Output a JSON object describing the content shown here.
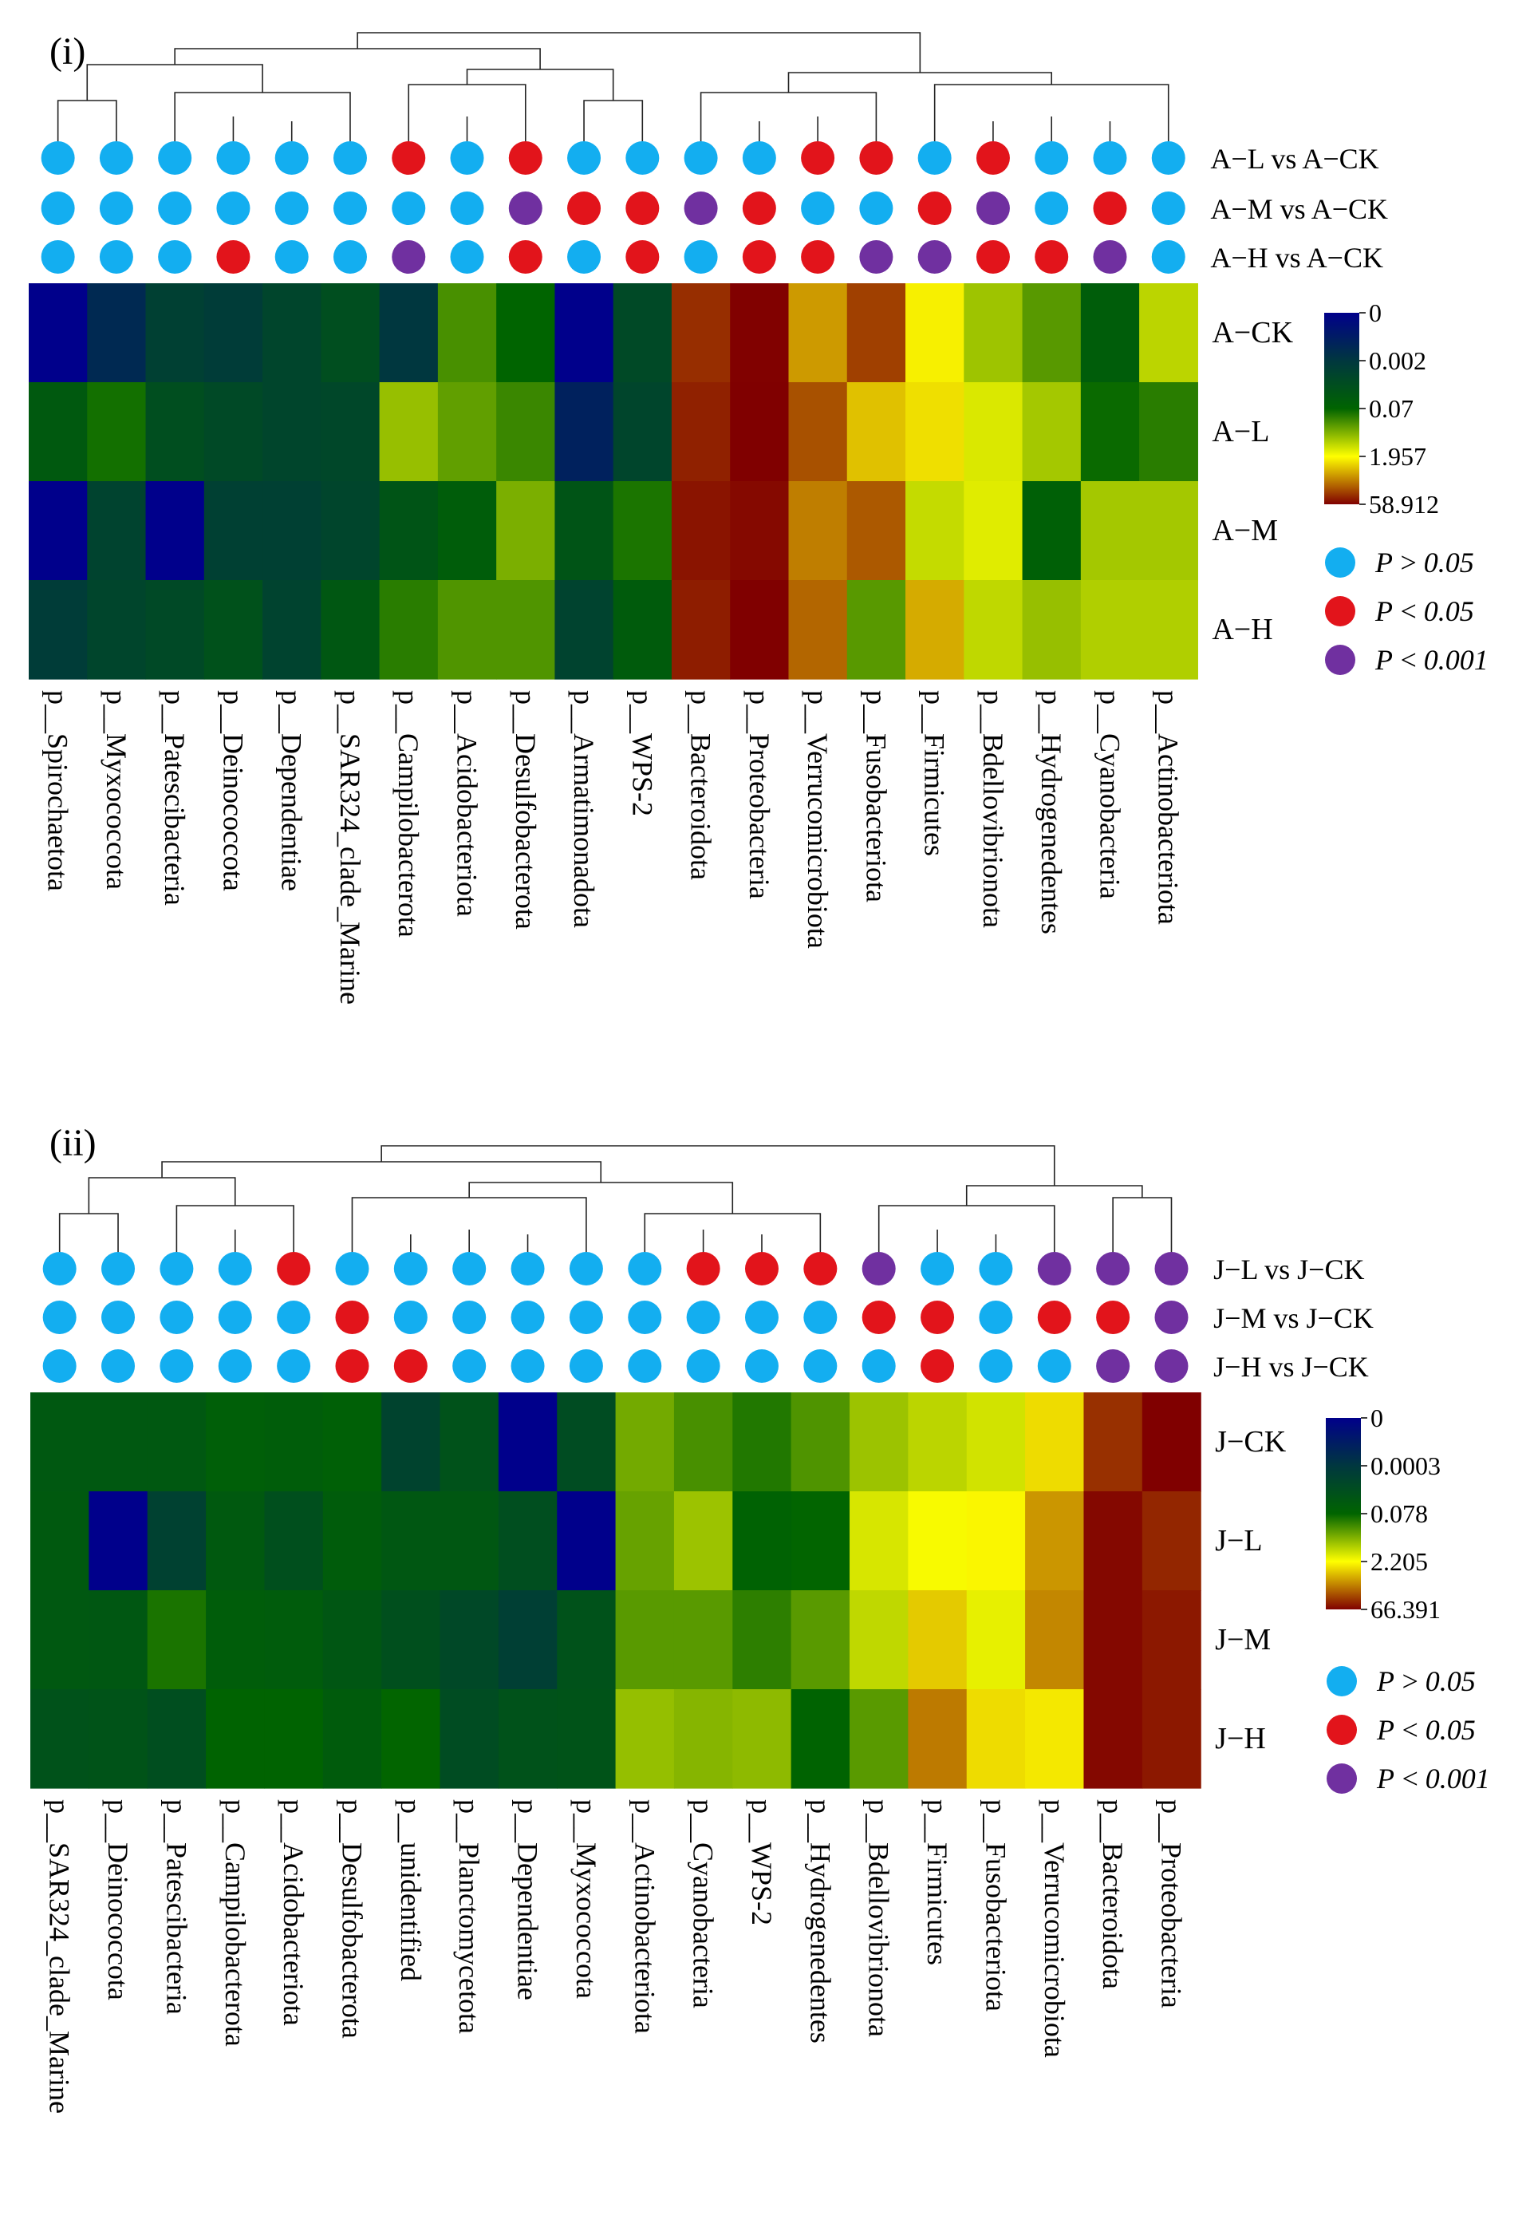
{
  "chart_data": [
    {
      "type": "heatmap",
      "panel_label": "(i)",
      "title": "",
      "rows": [
        "A−CK",
        "A−L",
        "A−M",
        "A−H"
      ],
      "columns": [
        "p__Spirochaetota",
        "p__Myxococcota",
        "p__Patescibacteria",
        "p__Deinococcota",
        "p__Dependentiae",
        "p__SAR324_clade_Marine",
        "p__Campilobacterota",
        "p__Acidobacteriota",
        "p__Desulfobacterota",
        "p__Armatimonadota",
        "p__WPS-2",
        "p__Bacteroidota",
        "p__Proteobacteria",
        "p__Verrucomicrobiota",
        "p__Fusobacteriota",
        "p__Firmicutes",
        "p__Bdellovibrionota",
        "p__Hydrogenedentes",
        "p__Cyanobacteria",
        "p__Actinobacteriota"
      ],
      "values": [
        [
          0.0,
          0.0015,
          0.004,
          0.003,
          0.006,
          0.012,
          0.002,
          0.18,
          0.07,
          0.0,
          0.008,
          32,
          58,
          7.5,
          25,
          2.4,
          0.55,
          0.22,
          0.04,
          0.8
        ],
        [
          0.03,
          0.09,
          0.012,
          0.008,
          0.006,
          0.007,
          0.5,
          0.25,
          0.15,
          0.0012,
          0.006,
          38,
          58.9,
          20,
          4.5,
          3.0,
          1.2,
          0.6,
          0.08,
          0.12
        ],
        [
          0.0,
          0.005,
          0.0,
          0.004,
          0.004,
          0.006,
          0.02,
          0.04,
          0.35,
          0.02,
          0.1,
          45,
          52,
          11,
          18,
          0.9,
          1.3,
          0.05,
          0.6,
          0.6
        ],
        [
          0.003,
          0.006,
          0.008,
          0.015,
          0.005,
          0.025,
          0.12,
          0.2,
          0.2,
          0.005,
          0.035,
          40,
          58.9,
          15,
          0.22,
          6,
          0.85,
          0.5,
          0.7,
          0.7
        ]
      ],
      "color_scale": {
        "ticks": [
          "0",
          "0.002",
          "0.07",
          "1.957",
          "58.912"
        ],
        "tick_values": [
          0,
          0.002,
          0.07,
          1.957,
          58.912
        ],
        "colors": [
          "#00008b",
          "#006400",
          "#ffff00",
          "#800000"
        ]
      },
      "comparisons": [
        {
          "label": "A−L   vs   A−CK",
          "significance": [
            "ns",
            "ns",
            "ns",
            "ns",
            "ns",
            "ns",
            "p05",
            "ns",
            "p05",
            "ns",
            "ns",
            "ns",
            "ns",
            "p05",
            "p05",
            "ns",
            "p05",
            "ns",
            "ns",
            "ns"
          ]
        },
        {
          "label": "A−M   vs   A−CK",
          "significance": [
            "ns",
            "ns",
            "ns",
            "ns",
            "ns",
            "ns",
            "ns",
            "ns",
            "p001",
            "p05",
            "p05",
            "p001",
            "p05",
            "ns",
            "ns",
            "p05",
            "p001",
            "ns",
            "p05",
            "ns"
          ]
        },
        {
          "label": "A−H   vs   A−CK",
          "significance": [
            "ns",
            "ns",
            "ns",
            "p05",
            "ns",
            "ns",
            "p001",
            "ns",
            "p05",
            "ns",
            "p05",
            "ns",
            "p05",
            "p05",
            "p001",
            "p001",
            "p05",
            "p05",
            "p001",
            "ns"
          ]
        }
      ],
      "legend": [
        {
          "key": "ns",
          "label": "P > 0.05",
          "color": "#13aef0"
        },
        {
          "key": "p05",
          "label": "P < 0.05",
          "color": "#e2141b"
        },
        {
          "key": "p001",
          "label": "P < 0.001",
          "color": "#7030a0"
        }
      ]
    },
    {
      "type": "heatmap",
      "panel_label": "(ii)",
      "title": "",
      "rows": [
        "J−CK",
        "J−L",
        "J−M",
        "J−H"
      ],
      "columns": [
        "p__SAR324_clade_Marine",
        "p__Deinococcota",
        "p__Patescibacteria",
        "p__Campilobacterota",
        "p__Acidobacteriota",
        "p__Desulfobacterota",
        "p__unidentified",
        "p__Planctomycetota",
        "p__Dependentiae",
        "p__Myxococcota",
        "p__Actinobacteriota",
        "p__Cyanobacteria",
        "p__WPS-2",
        "p__Hydrogenedentes",
        "p__Bdellovibrionota",
        "p__Firmicutes",
        "p__Fusobacteriota",
        "p__Verrucomicrobiota",
        "p__Bacteroidota",
        "p__Proteobacteria"
      ],
      "values": [
        [
          0.018,
          0.018,
          0.018,
          0.04,
          0.032,
          0.045,
          0.0013,
          0.008,
          0.0,
          0.004,
          0.35,
          0.2,
          0.12,
          0.22,
          0.6,
          0.9,
          1.2,
          3.5,
          35,
          66
        ],
        [
          0.02,
          0.0,
          0.001,
          0.02,
          0.006,
          0.03,
          0.016,
          0.016,
          0.005,
          0.0,
          0.3,
          0.6,
          0.06,
          0.08,
          1.3,
          2.0,
          2.5,
          9,
          60,
          40
        ],
        [
          0.018,
          0.016,
          0.11,
          0.033,
          0.028,
          0.014,
          0.006,
          0.0025,
          0.0008,
          0.008,
          0.25,
          0.25,
          0.14,
          0.25,
          0.95,
          4.5,
          1.6,
          11,
          60,
          48
        ],
        [
          0.008,
          0.009,
          0.005,
          0.07,
          0.07,
          0.027,
          0.08,
          0.004,
          0.008,
          0.009,
          0.55,
          0.45,
          0.5,
          0.07,
          0.25,
          13,
          3.5,
          3.0,
          60,
          48
        ]
      ],
      "color_scale": {
        "ticks": [
          "0",
          "0.0003",
          "0.078",
          "2.205",
          "66.391"
        ],
        "tick_values": [
          0,
          0.0003,
          0.078,
          2.205,
          66.391
        ],
        "colors": [
          "#00008b",
          "#006400",
          "#ffff00",
          "#800000"
        ]
      },
      "comparisons": [
        {
          "label": "J−L   vs   J−CK",
          "significance": [
            "ns",
            "ns",
            "ns",
            "ns",
            "p05",
            "ns",
            "ns",
            "ns",
            "ns",
            "ns",
            "ns",
            "p05",
            "p05",
            "p05",
            "p001",
            "ns",
            "ns",
            "p001",
            "p001",
            "p001"
          ]
        },
        {
          "label": "J−M   vs   J−CK",
          "significance": [
            "ns",
            "ns",
            "ns",
            "ns",
            "ns",
            "p05",
            "ns",
            "ns",
            "ns",
            "ns",
            "ns",
            "ns",
            "ns",
            "ns",
            "p05",
            "p05",
            "ns",
            "p05",
            "p05",
            "p001"
          ]
        },
        {
          "label": "J−H   vs   J−CK",
          "significance": [
            "ns",
            "ns",
            "ns",
            "ns",
            "ns",
            "p05",
            "p05",
            "ns",
            "ns",
            "ns",
            "ns",
            "ns",
            "ns",
            "ns",
            "ns",
            "p05",
            "ns",
            "ns",
            "p001",
            "p001"
          ]
        }
      ],
      "legend": [
        {
          "key": "ns",
          "label": "P > 0.05",
          "color": "#13aef0"
        },
        {
          "key": "p05",
          "label": "P < 0.05",
          "color": "#e2141b"
        },
        {
          "key": "p001",
          "label": "P < 0.001",
          "color": "#7030a0"
        }
      ]
    }
  ]
}
